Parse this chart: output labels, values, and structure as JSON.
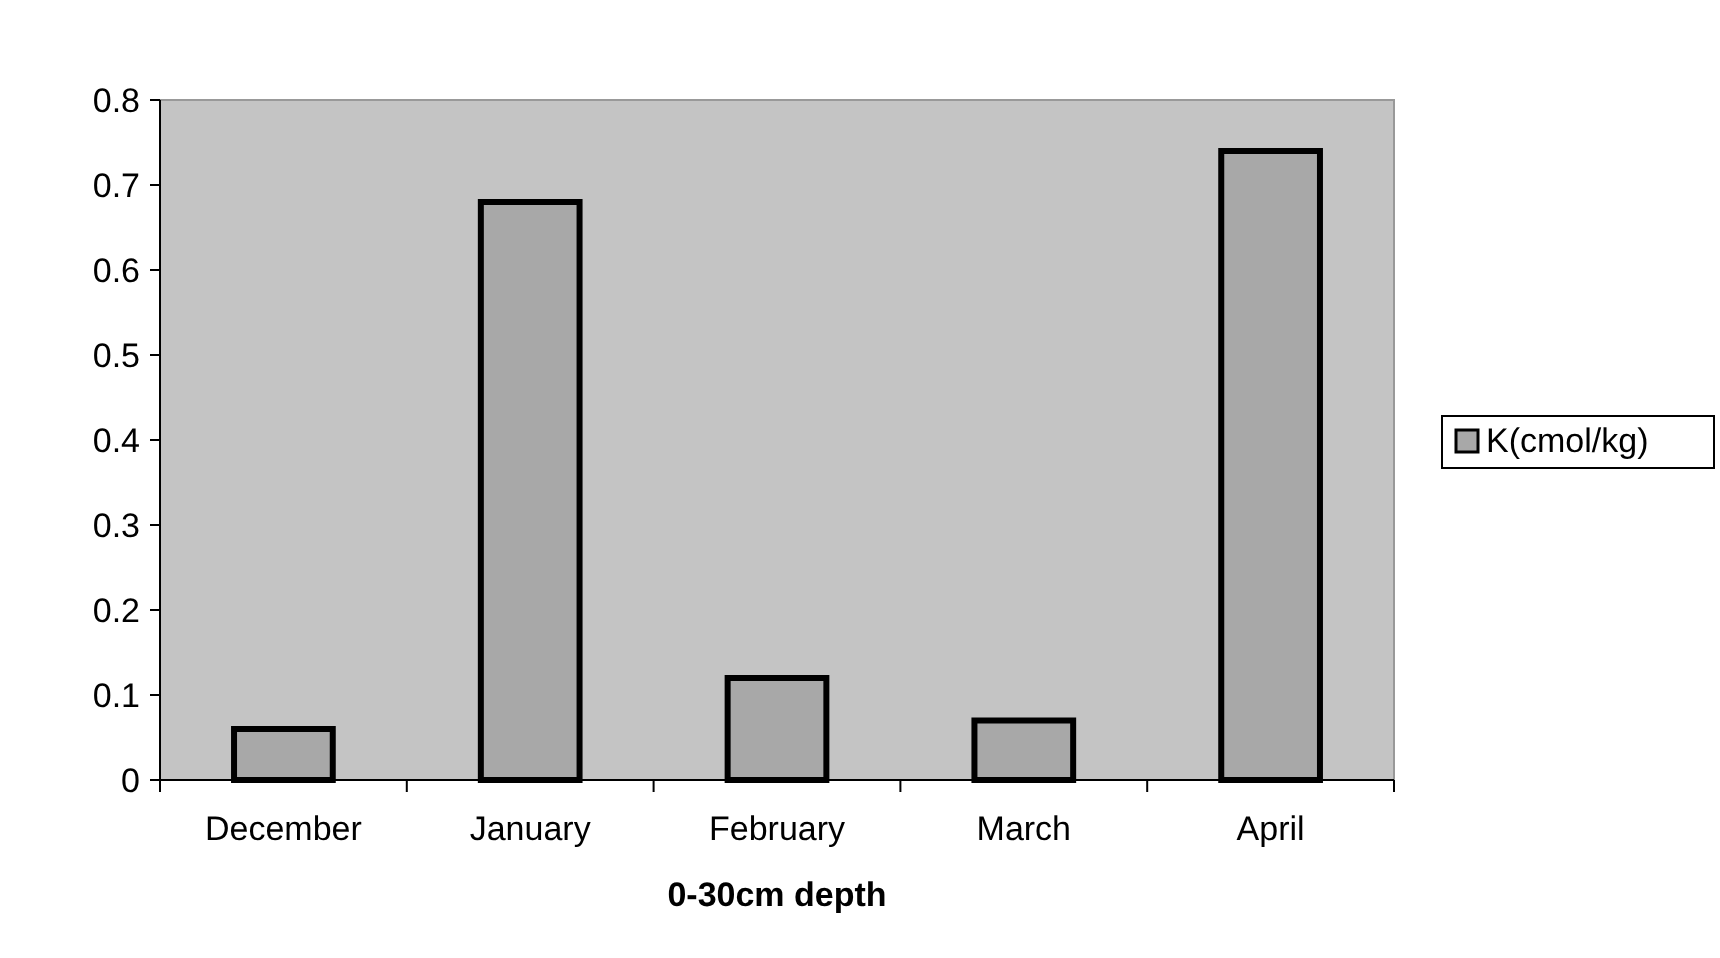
{
  "chart_data": {
    "type": "bar",
    "xlabel": "0-30cm depth",
    "categories": [
      "December",
      "January",
      "February",
      "March",
      "April"
    ],
    "series": [
      {
        "name": "K(cmol/kg)",
        "color": "#a8a8a8",
        "values": [
          0.06,
          0.68,
          0.12,
          0.07,
          0.74
        ]
      }
    ],
    "ylim": [
      0,
      0.8
    ],
    "yticks": [
      0,
      0.1,
      0.2,
      0.3,
      0.4,
      0.5,
      0.6,
      0.7,
      0.8
    ],
    "legend": "right"
  }
}
